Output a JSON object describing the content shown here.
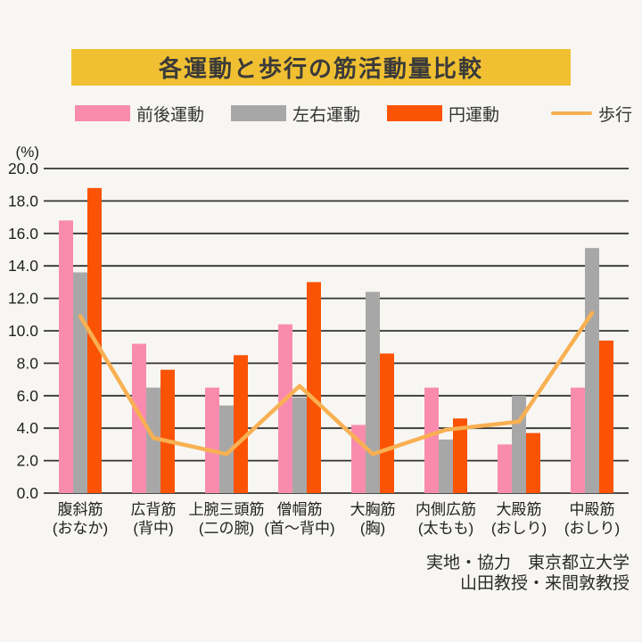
{
  "title": "各運動と歩行の筋活動量比較",
  "unit_label": "(%)",
  "credit": {
    "line1": "実地・協力　東京都立大学",
    "line2": "山田教授・来間敦教授"
  },
  "colors": {
    "background": "#f7f6f3",
    "title_band": "#f0c032",
    "pink": "#f98cae",
    "gray": "#a8a7a7",
    "orange": "#fb5304",
    "walk_line": "#f8b052"
  },
  "chart_data": {
    "type": "bar",
    "subtype": "grouped bars with line overlay",
    "title": "各運動と歩行の筋活動量比較",
    "ylabel": "(%)",
    "ylim": [
      0,
      20
    ],
    "ytick_step": 2,
    "yticks": [
      "20.0",
      "18.0",
      "16.0",
      "14.0",
      "12.0",
      "10.0",
      "8.0",
      "6.0",
      "4.0",
      "2.0",
      "0.0"
    ],
    "grid": true,
    "legend_position": "top",
    "layout": {
      "grid_color": "#333333",
      "text_color": "#222222"
    },
    "categories": [
      {
        "label": "腹斜筋",
        "sub": "(おなか)"
      },
      {
        "label": "広背筋",
        "sub": "(背中)"
      },
      {
        "label": "上腕三頭筋",
        "sub": "(二の腕)"
      },
      {
        "label": "僧帽筋",
        "sub": "(首〜背中)"
      },
      {
        "label": "大胸筋",
        "sub": "(胸)"
      },
      {
        "label": "内側広筋",
        "sub": "(太もも)"
      },
      {
        "label": "大殿筋",
        "sub": "(おしり)"
      },
      {
        "label": "中殿筋",
        "sub": "(おしり)"
      }
    ],
    "series": [
      {
        "name": "前後運動",
        "type": "bar",
        "color": "#f98cae",
        "values": [
          16.8,
          9.2,
          6.5,
          10.4,
          4.2,
          6.5,
          3.0,
          6.5
        ]
      },
      {
        "name": "左右運動",
        "type": "bar",
        "color": "#a8a7a7",
        "values": [
          13.6,
          6.5,
          5.4,
          5.9,
          12.4,
          3.3,
          6.0,
          15.1
        ]
      },
      {
        "name": "円運動",
        "type": "bar",
        "color": "#fb5304",
        "values": [
          18.8,
          7.6,
          8.5,
          13.0,
          8.6,
          4.6,
          3.7,
          9.4
        ]
      },
      {
        "name": "歩行",
        "type": "line",
        "color": "#f8b052",
        "values": [
          10.9,
          3.4,
          2.4,
          6.6,
          2.4,
          3.9,
          4.4,
          11.1
        ]
      }
    ]
  }
}
